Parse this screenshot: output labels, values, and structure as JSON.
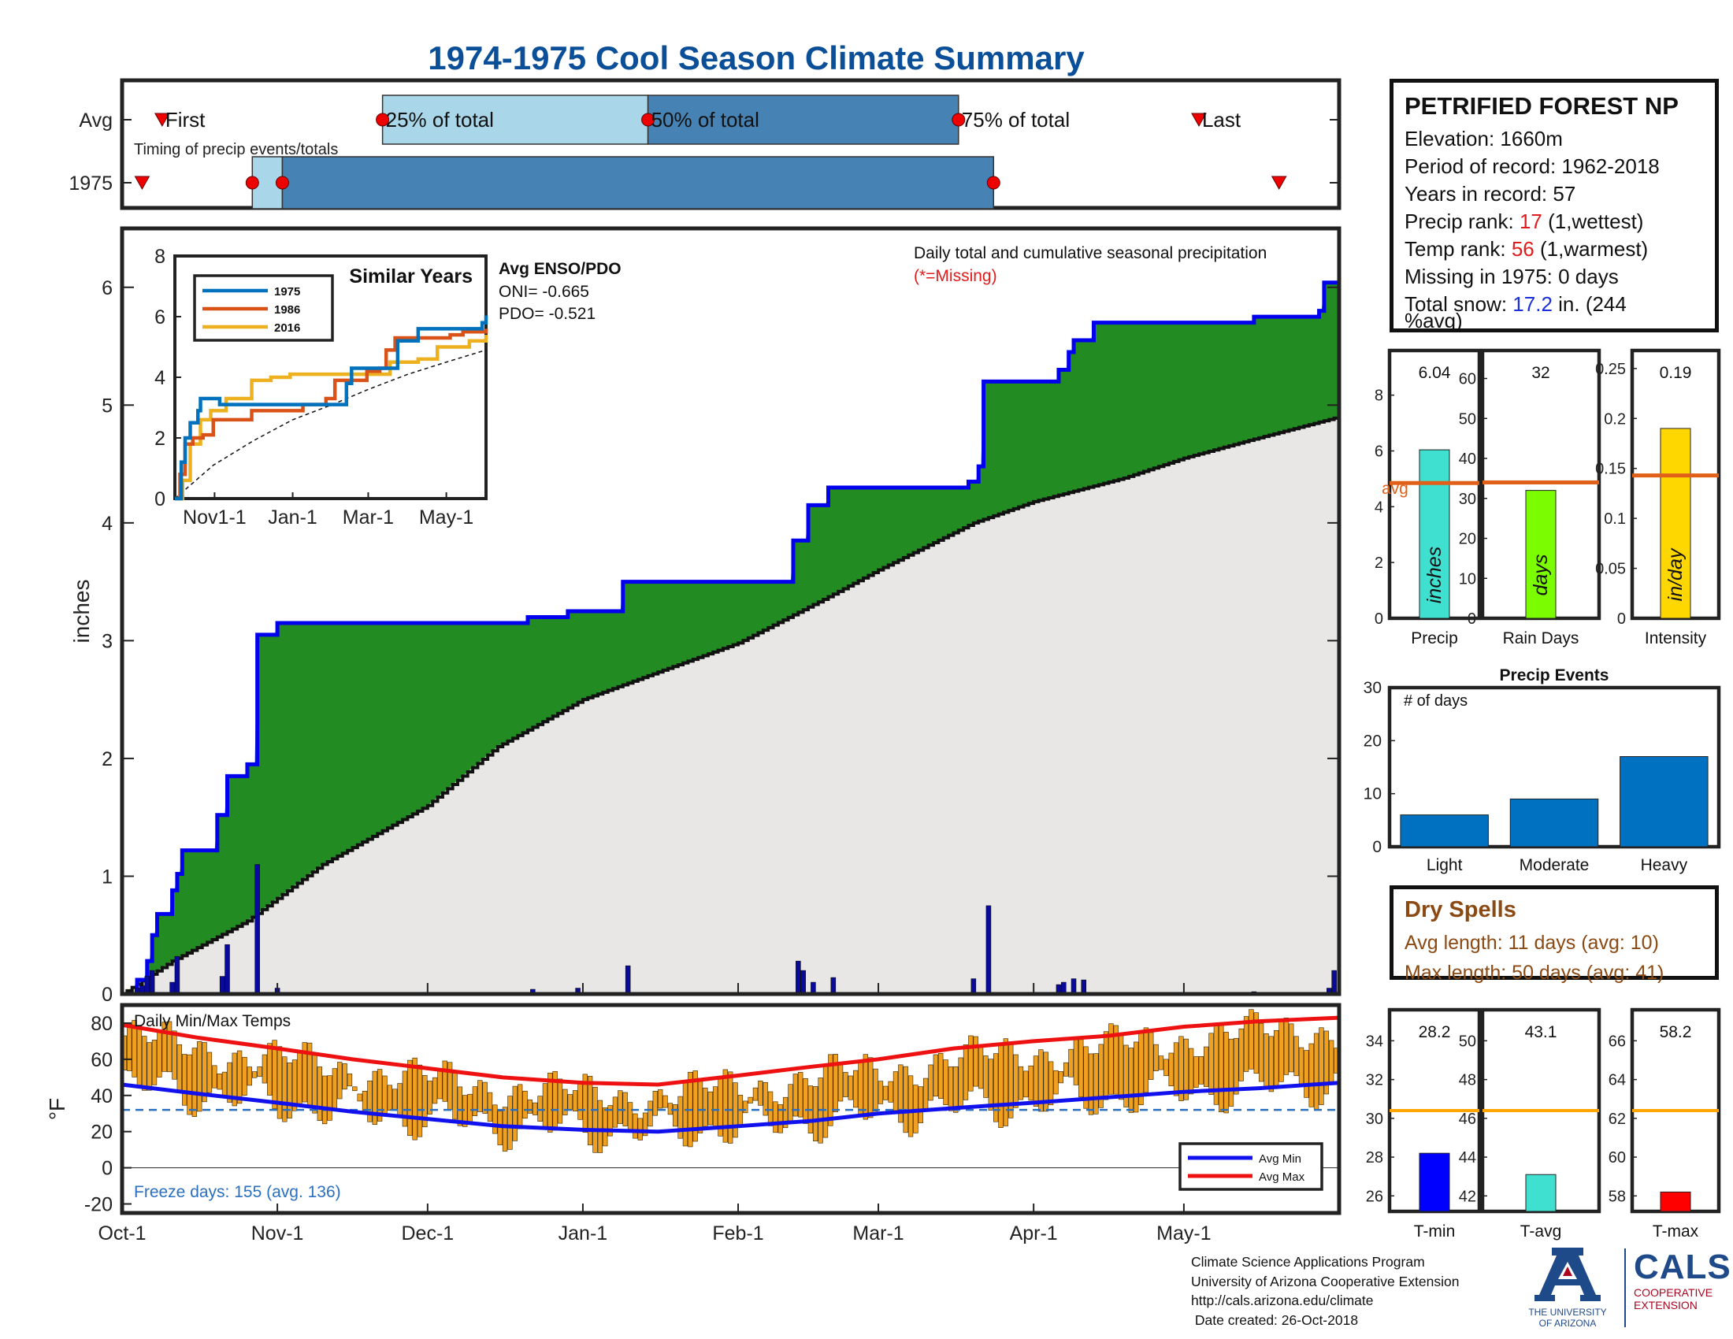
{
  "title": "1974-1975 Cool Season Climate Summary",
  "colors": {
    "title_blue": "#0b4f99",
    "cum_precip_line": "#0000ee",
    "cum_fill": "#228b22",
    "avg_fill": "#e8e7e6",
    "daily_bars": "#0a0a9a",
    "temp_bars": "#f0a020",
    "avg_max": "#ee1111",
    "avg_min": "#1111ee",
    "freeze_line": "#2a6fc0",
    "bar_light_blue": "#a9d6e8",
    "bar_steel_blue": "#4682b4",
    "marker_red": "#ee0000"
  },
  "timing": {
    "row_labels": [
      "Avg",
      "1975"
    ],
    "subtitle": "Timing of precip events/totals",
    "avg_markers": [
      {
        "label": "First",
        "day": 8,
        "kind": "triangle"
      },
      {
        "label": "25% of total",
        "day": 52,
        "kind": "dot"
      },
      {
        "label": "50% of total",
        "day": 105,
        "kind": "dot"
      },
      {
        "label": "75% of total",
        "day": 167,
        "kind": "dot"
      },
      {
        "label": "Last",
        "day": 215,
        "kind": "triangle"
      }
    ],
    "y1975_markers": [
      {
        "label": "First",
        "day": 4,
        "kind": "triangle"
      },
      {
        "label": "25%",
        "day": 26,
        "kind": "dot"
      },
      {
        "label": "50%",
        "day": 32,
        "kind": "dot"
      },
      {
        "label": "75%",
        "day": 174,
        "kind": "dot"
      },
      {
        "label": "Last",
        "day": 231,
        "kind": "triangle"
      }
    ]
  },
  "chart_data": [
    {
      "type": "area",
      "name": "cumulative-precip",
      "annotation": "Daily total and cumulative seasonal precipitation",
      "missing_note": "(*=Missing)",
      "ylabel": "inches",
      "ylim": [
        0,
        6.5
      ],
      "yticks": [
        0,
        1,
        2,
        3,
        4,
        5,
        6
      ],
      "x_ticks": [
        "Oct-1",
        "Nov-1",
        "Dec-1",
        "Jan-1",
        "Feb-1",
        "Mar-1",
        "Apr-1",
        "May-1"
      ],
      "x_tick_days": [
        0,
        31,
        61,
        92,
        123,
        151,
        182,
        212
      ],
      "season_days": 243,
      "cumulative_1975_steps": [
        [
          0,
          0
        ],
        [
          3,
          0.12
        ],
        [
          5,
          0.28
        ],
        [
          6,
          0.5
        ],
        [
          7,
          0.68
        ],
        [
          10,
          0.88
        ],
        [
          11,
          1.02
        ],
        [
          12,
          1.22
        ],
        [
          19,
          1.52
        ],
        [
          21,
          1.85
        ],
        [
          25,
          1.95
        ],
        [
          27,
          3.05
        ],
        [
          31,
          3.15
        ],
        [
          81,
          3.2
        ],
        [
          89,
          3.25
        ],
        [
          100,
          3.5
        ],
        [
          134,
          3.85
        ],
        [
          137,
          4.15
        ],
        [
          141,
          4.3
        ],
        [
          169,
          4.35
        ],
        [
          171,
          4.48
        ],
        [
          172,
          5.2
        ],
        [
          187,
          5.3
        ],
        [
          189,
          5.45
        ],
        [
          190,
          5.55
        ],
        [
          194,
          5.7
        ],
        [
          226,
          5.75
        ],
        [
          239,
          5.8
        ],
        [
          240,
          6.04
        ],
        [
          243,
          6.04
        ]
      ],
      "average_cumulative": [
        [
          0,
          0
        ],
        [
          10,
          0.28
        ],
        [
          25,
          0.62
        ],
        [
          40,
          1.1
        ],
        [
          61,
          1.6
        ],
        [
          75,
          2.1
        ],
        [
          92,
          2.5
        ],
        [
          110,
          2.78
        ],
        [
          123,
          2.98
        ],
        [
          140,
          3.35
        ],
        [
          151,
          3.6
        ],
        [
          170,
          4.0
        ],
        [
          182,
          4.18
        ],
        [
          200,
          4.38
        ],
        [
          212,
          4.55
        ],
        [
          225,
          4.7
        ],
        [
          243,
          4.9
        ]
      ],
      "daily_1975": [
        [
          3,
          0.05
        ],
        [
          4,
          0.07
        ],
        [
          5,
          0.15
        ],
        [
          6,
          0.2
        ],
        [
          10,
          0.1
        ],
        [
          11,
          0.32
        ],
        [
          20,
          0.15
        ],
        [
          21,
          0.42
        ],
        [
          27,
          1.1
        ],
        [
          31,
          0.05
        ],
        [
          82,
          0.04
        ],
        [
          91,
          0.05
        ],
        [
          101,
          0.24
        ],
        [
          135,
          0.28
        ],
        [
          136,
          0.2
        ],
        [
          138,
          0.1
        ],
        [
          142,
          0.14
        ],
        [
          170,
          0.13
        ],
        [
          173,
          0.75
        ],
        [
          187,
          0.08
        ],
        [
          188,
          0.1
        ],
        [
          190,
          0.13
        ],
        [
          192,
          0.12
        ],
        [
          226,
          0.02
        ],
        [
          241,
          0.05
        ],
        [
          242,
          0.2
        ]
      ]
    },
    {
      "type": "line",
      "name": "similar-years",
      "title": "Similar Years",
      "ylim": [
        0,
        8
      ],
      "yticks": [
        0,
        2,
        4,
        6,
        8
      ],
      "x_ticks": [
        "Nov1-1",
        "Jan-1",
        "Mar-1",
        "May-1"
      ],
      "x_tick_days": [
        31,
        92,
        151,
        212
      ],
      "series": [
        {
          "name": "1975",
          "color": "#0072bd",
          "points": [
            [
              0,
              0
            ],
            [
              5,
              1.2
            ],
            [
              8,
              2.0
            ],
            [
              12,
              2.5
            ],
            [
              18,
              2.9
            ],
            [
              20,
              3.3
            ],
            [
              27,
              3.3
            ],
            [
              35,
              3.1
            ],
            [
              90,
              3.1
            ],
            [
              130,
              3.1
            ],
            [
              134,
              3.8
            ],
            [
              138,
              4.3
            ],
            [
              171,
              4.3
            ],
            [
              174,
              5.2
            ],
            [
              190,
              5.6
            ],
            [
              240,
              5.8
            ],
            [
              243,
              6.04
            ]
          ]
        },
        {
          "name": "1986",
          "color": "#d95319",
          "points": [
            [
              0,
              0
            ],
            [
              4,
              0.8
            ],
            [
              8,
              1.8
            ],
            [
              14,
              2.0
            ],
            [
              22,
              2.1
            ],
            [
              30,
              2.6
            ],
            [
              60,
              2.9
            ],
            [
              100,
              3.1
            ],
            [
              118,
              3.3
            ],
            [
              125,
              3.9
            ],
            [
              150,
              4.2
            ],
            [
              160,
              4.3
            ],
            [
              165,
              4.9
            ],
            [
              172,
              5.3
            ],
            [
              190,
              5.3
            ],
            [
              215,
              5.4
            ],
            [
              225,
              5.5
            ],
            [
              243,
              5.6
            ]
          ]
        },
        {
          "name": "2016",
          "color": "#edb120",
          "points": [
            [
              0,
              0
            ],
            [
              6,
              0.6
            ],
            [
              12,
              1.8
            ],
            [
              20,
              2.6
            ],
            [
              28,
              2.9
            ],
            [
              40,
              3.3
            ],
            [
              60,
              3.9
            ],
            [
              75,
              4.0
            ],
            [
              90,
              4.1
            ],
            [
              130,
              4.1
            ],
            [
              150,
              4.1
            ],
            [
              168,
              4.5
            ],
            [
              190,
              4.6
            ],
            [
              205,
              5.0
            ],
            [
              230,
              5.2
            ],
            [
              243,
              5.4
            ]
          ]
        }
      ],
      "average_dashed": [
        [
          0,
          0
        ],
        [
          30,
          1.1
        ],
        [
          61,
          1.9
        ],
        [
          92,
          2.6
        ],
        [
          123,
          3.1
        ],
        [
          151,
          3.6
        ],
        [
          182,
          4.1
        ],
        [
          212,
          4.5
        ],
        [
          243,
          4.9
        ]
      ]
    },
    {
      "type": "bar",
      "name": "daily-temps",
      "annotation": "Daily Min/Max Temps",
      "ylabel": "°F",
      "ylim": [
        -25,
        90
      ],
      "yticks": [
        -20,
        0,
        20,
        40,
        60,
        80
      ],
      "freeze_line": 32,
      "legend": [
        "Avg Min",
        "Avg Max"
      ],
      "avg_max": [
        [
          0,
          79
        ],
        [
          15,
          72
        ],
        [
          31,
          66
        ],
        [
          46,
          60
        ],
        [
          61,
          55
        ],
        [
          76,
          50
        ],
        [
          92,
          47
        ],
        [
          107,
          46
        ],
        [
          123,
          51
        ],
        [
          138,
          56
        ],
        [
          151,
          60
        ],
        [
          166,
          66
        ],
        [
          182,
          70
        ],
        [
          197,
          73
        ],
        [
          212,
          78
        ],
        [
          227,
          81
        ],
        [
          243,
          83
        ]
      ],
      "avg_min": [
        [
          0,
          46
        ],
        [
          15,
          41
        ],
        [
          31,
          36
        ],
        [
          46,
          31
        ],
        [
          61,
          27
        ],
        [
          76,
          23
        ],
        [
          92,
          21
        ],
        [
          107,
          20
        ],
        [
          123,
          23
        ],
        [
          138,
          26
        ],
        [
          151,
          30
        ],
        [
          166,
          33
        ],
        [
          182,
          36
        ],
        [
          197,
          39
        ],
        [
          212,
          42
        ],
        [
          227,
          44
        ],
        [
          243,
          47
        ]
      ]
    },
    {
      "type": "bar",
      "name": "season-totals",
      "subplots": [
        {
          "label": "Precip",
          "unit": "inches",
          "value": 6.04,
          "avg": 4.85,
          "ylim": [
            0,
            9.6
          ],
          "yticks": [
            0,
            2,
            4,
            6,
            8
          ],
          "color": "#40e0d0",
          "avg_label": "avg"
        },
        {
          "label": "Rain Days",
          "unit": "days",
          "value": 32,
          "avg": 34,
          "ylim": [
            0,
            67
          ],
          "yticks": [
            0,
            10,
            20,
            30,
            40,
            50,
            60
          ],
          "color": "#7cfc00"
        },
        {
          "label": "Intensity",
          "unit": "in/day",
          "value": 0.19,
          "avg": 0.143,
          "ylim": [
            0,
            0.268
          ],
          "yticks": [
            0,
            0.05,
            0.1,
            0.15,
            0.2,
            0.25
          ],
          "color": "#ffd700"
        }
      ]
    },
    {
      "type": "bar",
      "name": "precip-events",
      "title": "Precip Events",
      "annotation": "# of days",
      "categories": [
        "Light",
        "Moderate",
        "Heavy"
      ],
      "values": [
        6,
        9,
        17
      ],
      "ylim": [
        0,
        30
      ],
      "yticks": [
        0,
        10,
        20,
        30
      ],
      "color": "#0070c0"
    },
    {
      "type": "bar",
      "name": "season-temps",
      "subplots": [
        {
          "label": "T-min",
          "value": 28.2,
          "avg": 30.4,
          "ylim": [
            25.2,
            35.6
          ],
          "yticks": [
            26,
            28,
            30,
            32,
            34
          ],
          "color": "#0000ff"
        },
        {
          "label": "T-avg",
          "value": 43.1,
          "avg": 46.4,
          "ylim": [
            41.2,
            51.6
          ],
          "yticks": [
            42,
            44,
            46,
            48,
            50
          ],
          "color": "#40e0d0"
        },
        {
          "label": "T-max",
          "value": 58.2,
          "avg": 62.4,
          "ylim": [
            57.2,
            67.6
          ],
          "yticks": [
            58,
            60,
            62,
            64,
            66
          ],
          "color": "#ff0000"
        }
      ]
    }
  ],
  "enso": {
    "title": "Avg ENSO/PDO",
    "oni": "ONI= -0.665",
    "pdo": "PDO= -0.521"
  },
  "freeze_days": "Freeze days: 155 (avg. 136)",
  "station": {
    "name": "PETRIFIED FOREST NP",
    "elevation": "Elevation: 1660m",
    "period": "Period of record: 1962-2018",
    "years": "Years in record: 57",
    "precip_rank_label": "Precip rank: ",
    "precip_rank_value": "17",
    "precip_rank_note": " (1,wettest)",
    "temp_rank_label": "Temp rank: ",
    "temp_rank_value": "56",
    "temp_rank_note": " (1,warmest)",
    "missing": "Missing in 1975: 0 days",
    "snow_label": "Total snow: ",
    "snow_value": "17.2",
    "snow_note": " in. (244",
    "snow_note2": "%avg)"
  },
  "dry_spells": {
    "title": "Dry Spells",
    "avg_length": "Avg length: 11 days (avg: 10)",
    "max_length": "Max length: 50 days (avg: 41)"
  },
  "footer": {
    "line1": "Climate Science Applications Program",
    "line2": "University of Arizona Cooperative Extension",
    "line3": "http://cals.arizona.edu/climate",
    "line4": " Date created: 26-Oct-2018"
  },
  "logos": {
    "ua_letter": "A",
    "ua_line1": "THE UNIVERSITY",
    "ua_line2": "OF ARIZONA",
    "cals_word": "CALS",
    "cals_line1": "COOPERATIVE",
    "cals_line2": "EXTENSION"
  }
}
